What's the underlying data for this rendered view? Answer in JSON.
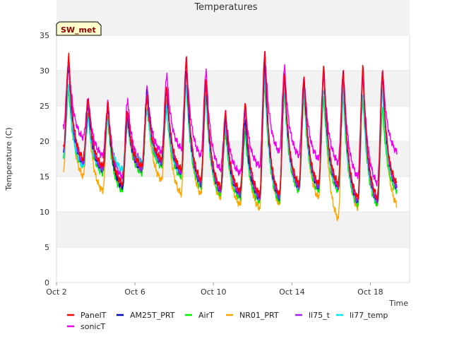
{
  "chart_data": {
    "type": "line",
    "title": "Temperatures",
    "xlabel": "Time",
    "ylabel": "Temperature (C)",
    "ylim": [
      0,
      35
    ],
    "xlim": [
      "Oct 2",
      "Oct 20"
    ],
    "x_unit": "day of October",
    "grid": "horizontal bands",
    "legend_position": "bottom",
    "site_badge": "SW_met",
    "x_ticks": [
      {
        "value": 2,
        "label": "Oct 2"
      },
      {
        "value": 6,
        "label": "Oct 6"
      },
      {
        "value": 10,
        "label": "Oct 10"
      },
      {
        "value": 14,
        "label": "Oct 14"
      },
      {
        "value": 18,
        "label": "Oct 18"
      }
    ],
    "y_ticks": [
      0,
      5,
      10,
      15,
      20,
      25,
      30,
      35
    ],
    "series": [
      {
        "name": "PanelT",
        "color": "#ff0000",
        "daily_min": [
          19,
          17.5,
          16.5,
          14,
          16.5,
          17.5,
          16,
          14.5,
          13.5,
          13,
          12.5,
          12.5,
          14,
          14,
          14,
          12,
          12,
          14
        ],
        "daily_max": [
          32,
          26,
          25,
          24.5,
          26,
          28,
          31.5,
          29,
          24,
          25.5,
          32.5,
          29.5,
          29,
          30.5,
          30,
          30.5,
          30
        ]
      },
      {
        "name": "AM25T_PRT",
        "color": "#0000cc",
        "daily_min": [
          18.5,
          17,
          16,
          13.5,
          16,
          17,
          15.5,
          14,
          13,
          12.5,
          12,
          12,
          13.5,
          13.5,
          13.5,
          11.5,
          11.5,
          13.5
        ],
        "daily_max": [
          30.5,
          25,
          24.5,
          23.5,
          27.5,
          27,
          30,
          28,
          23,
          23,
          31,
          29,
          28.5,
          29.5,
          29.5,
          29.5,
          29.5
        ]
      },
      {
        "name": "AirT",
        "color": "#00ee00",
        "daily_min": [
          18,
          16.5,
          15.5,
          13,
          15.5,
          16.5,
          15,
          13.5,
          12.5,
          12,
          11.5,
          11.5,
          13,
          13,
          13,
          11,
          11,
          13
        ],
        "daily_max": [
          27,
          23.5,
          23,
          23,
          24.5,
          24.5,
          27.5,
          26,
          21,
          21,
          28,
          26.5,
          26,
          26,
          26,
          26,
          24.5
        ]
      },
      {
        "name": "NR01_PRT",
        "color": "#ffa500",
        "daily_min": [
          16,
          15,
          13,
          13.5,
          16,
          14.5,
          12.5,
          12.5,
          12,
          11,
          10.5,
          11,
          13.5,
          12,
          9,
          10.5,
          11
        ],
        "daily_max": [
          31,
          24,
          23.5,
          22.5,
          26,
          26,
          30,
          27,
          22.5,
          22.5,
          30.5,
          28.5,
          28,
          29.5,
          29,
          29,
          29
        ]
      },
      {
        "name": "li75_t",
        "color": "#a020f0",
        "daily_min": [
          18.5,
          17,
          16,
          14,
          16,
          17,
          15.5,
          14,
          13,
          12.5,
          12,
          12,
          13.5,
          13.5,
          13.5,
          11.5,
          11.5,
          13.5
        ],
        "daily_max": [
          31,
          25.5,
          25,
          24,
          27,
          27.5,
          31,
          28.5,
          23.5,
          24.5,
          32,
          29.5,
          29,
          30,
          29.5,
          29.5,
          29.5
        ]
      },
      {
        "name": "li77_temp",
        "color": "#00e5ee",
        "daily_min": [
          17.5,
          16.5,
          16,
          16,
          17,
          17,
          15.5,
          14,
          13,
          12.5,
          12,
          12,
          13.5,
          13.5,
          13.5,
          11.5,
          11.5,
          13.5
        ],
        "daily_max": [
          28,
          23,
          23,
          22.5,
          24.5,
          25,
          28,
          26.5,
          22,
          22.5,
          29,
          27,
          27,
          27.5,
          27,
          27,
          27
        ]
      },
      {
        "name": "sonicT",
        "color": "#ee00ee",
        "daily_min": [
          22,
          20.5,
          18,
          15,
          17,
          18.5,
          19,
          18,
          16,
          15.5,
          16.5,
          18.5,
          18,
          17.5,
          17,
          15,
          14,
          18.5
        ],
        "daily_max": [
          31.5,
          26,
          25.5,
          26,
          27.5,
          29.5,
          31.5,
          30,
          24,
          25,
          32.5,
          30.5,
          29,
          30,
          30,
          30,
          30
        ]
      }
    ]
  }
}
